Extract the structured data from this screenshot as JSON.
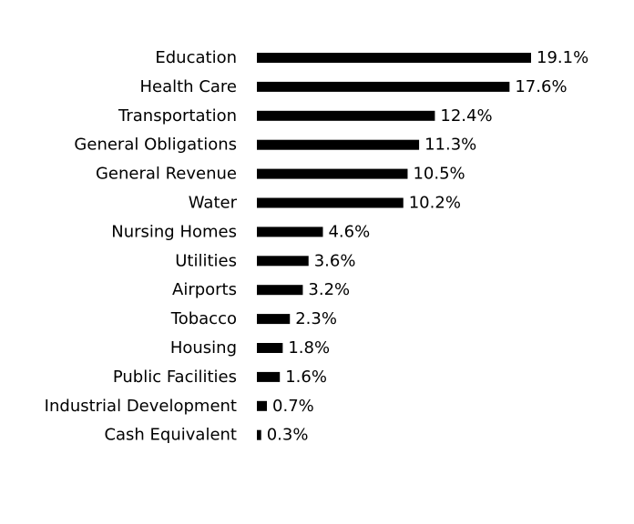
{
  "chart_data": {
    "type": "bar",
    "orientation": "horizontal",
    "title": "",
    "xlabel": "",
    "ylabel": "",
    "categories": [
      "Education",
      "Health Care",
      "Transportation",
      "General Obligations",
      "General Revenue",
      "Water",
      "Nursing Homes",
      "Utilities",
      "Airports",
      "Tobacco",
      "Housing",
      "Public Facilities",
      "Industrial Development",
      "Cash Equivalent"
    ],
    "values": [
      19.1,
      17.6,
      12.4,
      11.3,
      10.5,
      10.2,
      4.6,
      3.6,
      3.2,
      2.3,
      1.8,
      1.6,
      0.7,
      0.3
    ],
    "value_labels": [
      "19.1%",
      "17.6%",
      "12.4%",
      "11.3%",
      "10.5%",
      "10.2%",
      "4.6%",
      "3.6%",
      "3.2%",
      "2.3%",
      "1.8%",
      "1.6%",
      "0.7%",
      "0.3%"
    ],
    "bar_color": "#000000",
    "grid": false,
    "legend": "none"
  }
}
